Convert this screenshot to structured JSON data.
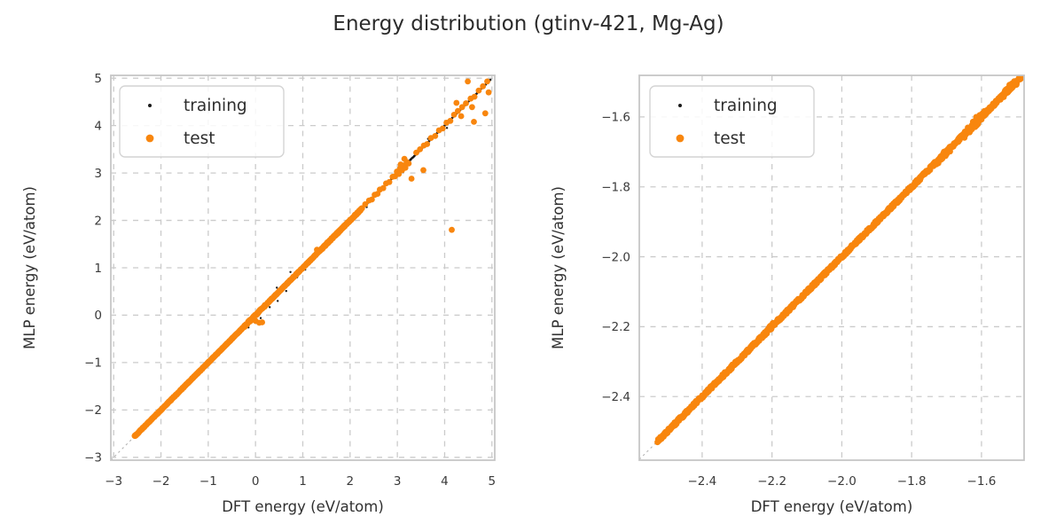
{
  "suptitle": "Energy distribution (gtinv-421, Mg-Ag)",
  "colors": {
    "training": "#1a1a1a",
    "test": "#f8860e",
    "grid": "#cbcbcb",
    "spine": "#c6c6c6",
    "tick_text": "#3a3a3a",
    "label_text": "#303030",
    "title_text": "#2b2b2b",
    "identity": "#b0b0b0",
    "legend_border": "#d4d4d4",
    "legend_bg": "#ffffff"
  },
  "legend": {
    "items": [
      {
        "label": "training",
        "series": "training"
      },
      {
        "label": "test",
        "series": "test"
      }
    ]
  },
  "chart_data": [
    {
      "type": "scatter",
      "id": "left-plot",
      "xlabel": "DFT energy (eV/atom)",
      "ylabel": "MLP energy (eV/atom)",
      "xlim": [
        -3.06,
        5.06
      ],
      "ylim": [
        -3.06,
        5.06
      ],
      "xticks": [
        -3,
        -2,
        -1,
        0,
        1,
        2,
        3,
        4,
        5
      ],
      "xtick_labels": [
        "−3",
        "−2",
        "−1",
        "0",
        "1",
        "2",
        "3",
        "4",
        "5"
      ],
      "yticks": [
        -3,
        -2,
        -1,
        0,
        1,
        2,
        3,
        4,
        5
      ],
      "ytick_labels": [
        "−3",
        "−2",
        "−1",
        "0",
        "1",
        "2",
        "3",
        "4",
        "5"
      ],
      "grid": "dashed",
      "identity_line": true,
      "legend_position": "upper-left",
      "series": [
        {
          "name": "training",
          "color_key": "training",
          "marker_radius_px": 1.2,
          "band_segments": [
            {
              "from": -2.555,
              "to": 4.97,
              "n": 950,
              "jitter": 0.007
            }
          ],
          "points": [
            [
              0.45,
              0.58
            ],
            [
              0.65,
              0.51
            ],
            [
              0.74,
              0.91
            ],
            [
              0.52,
              0.54
            ],
            [
              0.47,
              0.3
            ],
            [
              0.67,
              0.62
            ],
            [
              0.11,
              -0.06
            ],
            [
              0.3,
              0.17
            ],
            [
              1.28,
              1.38
            ],
            [
              2.35,
              2.28
            ],
            [
              3.12,
              3.02
            ],
            [
              3.65,
              3.72
            ],
            [
              1.05,
              0.96
            ],
            [
              4.05,
              3.95
            ],
            [
              0.88,
              0.8
            ],
            [
              -0.15,
              -0.26
            ]
          ]
        },
        {
          "name": "test",
          "color_key": "test",
          "marker_radius_px": 3.4,
          "band_segments": [
            {
              "from": -2.555,
              "to": -0.3,
              "n": 420,
              "jitter": 0.008
            },
            {
              "from": -0.3,
              "to": 0.2,
              "n": 60,
              "jitter": 0.018
            },
            {
              "from": 0.2,
              "to": 1.4,
              "n": 150,
              "jitter": 0.008
            },
            {
              "from": 1.4,
              "to": 1.8,
              "n": 90,
              "jitter": 0.016
            },
            {
              "from": 1.8,
              "to": 2.25,
              "n": 90,
              "jitter": 0.014
            }
          ],
          "points": [
            [
              0.0,
              -0.12
            ],
            [
              0.08,
              -0.16
            ],
            [
              -0.04,
              -0.06
            ],
            [
              0.14,
              -0.15
            ],
            [
              1.3,
              1.38
            ],
            [
              2.32,
              2.34
            ],
            [
              2.4,
              2.42
            ],
            [
              2.46,
              2.44
            ],
            [
              2.52,
              2.54
            ],
            [
              2.58,
              2.56
            ],
            [
              2.63,
              2.65
            ],
            [
              2.7,
              2.68
            ],
            [
              2.76,
              2.78
            ],
            [
              2.83,
              2.81
            ],
            [
              2.9,
              2.92
            ],
            [
              2.95,
              2.93
            ],
            [
              2.99,
              3.03
            ],
            [
              3.03,
              2.98
            ],
            [
              3.06,
              3.1
            ],
            [
              3.1,
              3.06
            ],
            [
              3.13,
              3.16
            ],
            [
              3.17,
              3.11
            ],
            [
              3.2,
              3.23
            ],
            [
              3.07,
              3.18
            ],
            [
              3.24,
              3.2
            ],
            [
              3.3,
              2.88
            ],
            [
              3.15,
              3.3
            ],
            [
              3.55,
              3.06
            ],
            [
              3.4,
              3.43
            ],
            [
              3.48,
              3.5
            ],
            [
              3.56,
              3.58
            ],
            [
              3.63,
              3.61
            ],
            [
              3.71,
              3.74
            ],
            [
              3.8,
              3.78
            ],
            [
              3.88,
              3.9
            ],
            [
              3.96,
              3.94
            ],
            [
              4.04,
              4.06
            ],
            [
              4.12,
              4.1
            ],
            [
              4.2,
              4.23
            ],
            [
              4.28,
              4.31
            ],
            [
              4.37,
              4.39
            ],
            [
              4.45,
              4.47
            ],
            [
              4.55,
              4.57
            ],
            [
              4.63,
              4.61
            ],
            [
              4.72,
              4.74
            ],
            [
              4.81,
              4.83
            ],
            [
              4.9,
              4.93
            ],
            [
              4.49,
              4.93
            ],
            [
              4.25,
              4.48
            ],
            [
              4.58,
              4.39
            ],
            [
              4.86,
              4.26
            ],
            [
              4.62,
              4.08
            ],
            [
              4.93,
              4.7
            ],
            [
              4.35,
              4.2
            ],
            [
              4.15,
              1.8
            ]
          ]
        }
      ]
    },
    {
      "type": "scatter",
      "id": "right-plot",
      "xlabel": "DFT energy (eV/atom)",
      "ylabel": "MLP energy (eV/atom)",
      "xlim": [
        -2.58,
        -1.478
      ],
      "ylim": [
        -2.582,
        -1.481
      ],
      "xticks": [
        -2.4,
        -2.2,
        -2.0,
        -1.8,
        -1.6
      ],
      "xtick_labels": [
        "−2.4",
        "−2.2",
        "−2.0",
        "−1.8",
        "−1.6"
      ],
      "yticks": [
        -1.6,
        -1.8,
        -2.0,
        -2.2,
        -2.4
      ],
      "ytick_labels": [
        "−1.6",
        "−1.8",
        "−2.0",
        "−2.2",
        "−2.4"
      ],
      "grid": "dashed",
      "identity_line": true,
      "legend_position": "upper-left",
      "series": [
        {
          "name": "training",
          "color_key": "training",
          "marker_radius_px": 1.2,
          "band_segments": [
            {
              "from": -2.528,
              "to": -1.49,
              "n": 700,
              "jitter": 0.004
            }
          ],
          "points": [
            [
              -1.9,
              -1.908
            ],
            [
              -1.73,
              -1.738
            ],
            [
              -1.7,
              -1.708
            ],
            [
              -1.655,
              -1.663
            ],
            [
              -1.565,
              -1.573
            ],
            [
              -1.53,
              -1.538
            ],
            [
              -1.51,
              -1.516
            ],
            [
              -1.62,
              -1.629
            ],
            [
              -1.77,
              -1.777
            ],
            [
              -1.84,
              -1.848
            ],
            [
              -1.585,
              -1.578
            ],
            [
              -1.52,
              -1.512
            ],
            [
              -1.49,
              -1.497
            ],
            [
              -1.975,
              -1.983
            ],
            [
              -2.05,
              -2.057
            ]
          ]
        },
        {
          "name": "test",
          "color_key": "test",
          "marker_radius_px": 3.4,
          "band_segments": [
            {
              "from": -2.527,
              "to": -1.483,
              "n": 950,
              "jitter": 0.005
            },
            {
              "from": -1.65,
              "to": -1.59,
              "n": 40,
              "jitter": 0.011
            },
            {
              "from": -1.73,
              "to": -1.69,
              "n": 25,
              "jitter": 0.009
            },
            {
              "from": -1.54,
              "to": -1.5,
              "n": 30,
              "jitter": 0.009
            },
            {
              "from": -2.21,
              "to": -2.19,
              "n": 15,
              "jitter": 0.008
            }
          ],
          "points": [
            [
              -1.615,
              -1.6
            ],
            [
              -1.52,
              -1.508
            ]
          ]
        }
      ]
    }
  ]
}
